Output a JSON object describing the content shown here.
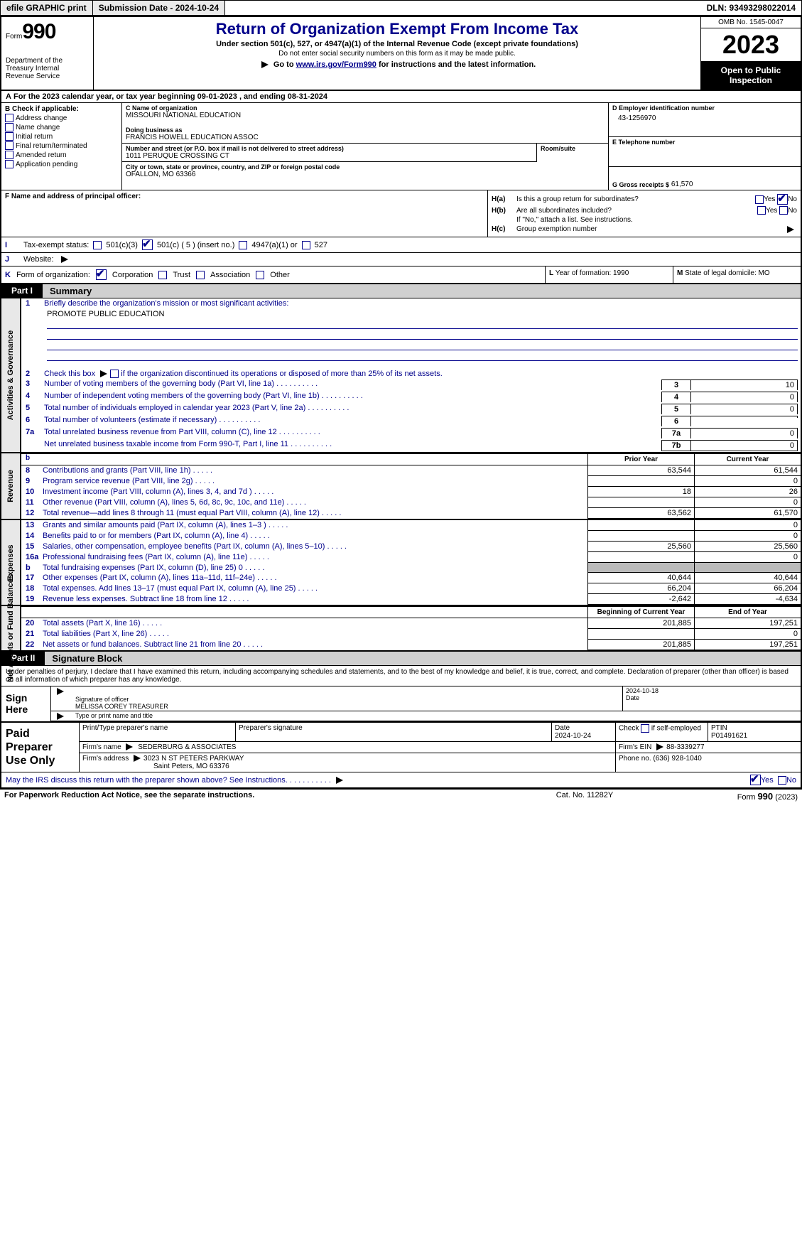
{
  "topbar": {
    "efile": "efile GRAPHIC print",
    "submission": "Submission Date - 2024-10-24",
    "dln": "DLN: 93493298022014"
  },
  "header": {
    "form_label": "Form",
    "form_num": "990",
    "dept": "Department of the Treasury Internal Revenue Service",
    "title": "Return of Organization Exempt From Income Tax",
    "subtitle": "Under section 501(c), 527, or 4947(a)(1) of the Internal Revenue Code (except private foundations)",
    "note": "Do not enter social security numbers on this form as it may be made public.",
    "goto_pre": "Go to ",
    "goto_link": "www.irs.gov/Form990",
    "goto_post": " for instructions and the latest information.",
    "omb": "OMB No. 1545-0047",
    "year": "2023",
    "open": "Open to Public Inspection"
  },
  "period": "For the 2023 calendar year, or tax year beginning 09-01-2023   , and ending 08-31-2024",
  "b": {
    "label": "B Check if applicable:",
    "items": [
      "Address change",
      "Name change",
      "Initial return",
      "Final return/terminated",
      "Amended return",
      "Application pending"
    ]
  },
  "c": {
    "name_lbl": "C Name of organization",
    "name": "MISSOURI NATIONAL EDUCATION",
    "dba_lbl": "Doing business as",
    "dba": "FRANCIS HOWELL EDUCATION ASSOC",
    "street_lbl": "Number and street (or P.O. box if mail is not delivered to street address)",
    "street": "1011 PERUQUE CROSSING CT",
    "room_lbl": "Room/suite",
    "city_lbl": "City or town, state or province, country, and ZIP or foreign postal code",
    "city": "OFALLON, MO  63366"
  },
  "d": {
    "lbl": "D Employer identification number",
    "val": "43-1256970"
  },
  "e": {
    "lbl": "E Telephone number"
  },
  "g": {
    "lbl": "G Gross receipts $",
    "val": "61,570"
  },
  "f": {
    "lbl": "F  Name and address of principal officer:"
  },
  "h": {
    "a_lbl": "H(a)",
    "a_txt": "Is this a group return for subordinates?",
    "b_lbl": "H(b)",
    "b_txt": "Are all subordinates included?",
    "b_note": "If \"No,\" attach a list. See instructions.",
    "c_lbl": "H(c)",
    "c_txt": "Group exemption number",
    "yes": "Yes",
    "no": "No"
  },
  "i": {
    "lbl": "I",
    "txt": "Tax-exempt status:",
    "o1": "501(c)(3)",
    "o2": "501(c) ( 5 ) (insert no.)",
    "o3": "4947(a)(1) or",
    "o4": "527"
  },
  "j": {
    "lbl": "J",
    "txt": "Website:"
  },
  "k": {
    "lbl": "K",
    "txt": "Form of organization:",
    "o1": "Corporation",
    "o2": "Trust",
    "o3": "Association",
    "o4": "Other"
  },
  "l": {
    "lbl": "L",
    "txt": "Year of formation: 1990"
  },
  "m": {
    "lbl": "M",
    "txt": "State of legal domicile: MO"
  },
  "part1": {
    "tag": "Part I",
    "title": "Summary"
  },
  "tabs": {
    "ag": "Activities & Governance",
    "rev": "Revenue",
    "exp": "Expenses",
    "net": "Net Assets or Fund Balances"
  },
  "s1": {
    "num": "1",
    "txt": "Briefly describe the organization's mission or most significant activities:",
    "val": "PROMOTE PUBLIC EDUCATION"
  },
  "s2": {
    "num": "2",
    "txt": "Check this box       if the organization discontinued its operations or disposed of more than 25% of its net assets."
  },
  "lines_ag": [
    {
      "num": "3",
      "txt": "Number of voting members of the governing body (Part VI, line 1a)",
      "box": "3",
      "val": "10"
    },
    {
      "num": "4",
      "txt": "Number of independent voting members of the governing body (Part VI, line 1b)",
      "box": "4",
      "val": "0"
    },
    {
      "num": "5",
      "txt": "Total number of individuals employed in calendar year 2023 (Part V, line 2a)",
      "box": "5",
      "val": "0"
    },
    {
      "num": "6",
      "txt": "Total number of volunteers (estimate if necessary)",
      "box": "6",
      "val": ""
    },
    {
      "num": "7a",
      "txt": "Total unrelated business revenue from Part VIII, column (C), line 12",
      "box": "7a",
      "val": "0"
    },
    {
      "num": "",
      "txt": "Net unrelated business taxable income from Form 990-T, Part I, line 11",
      "box": "7b",
      "val": "0"
    }
  ],
  "b_hdr": "b",
  "col_hdr": {
    "prior": "Prior Year",
    "current": "Current Year"
  },
  "rev": [
    {
      "num": "8",
      "txt": "Contributions and grants (Part VIII, line 1h)",
      "c1": "63,544",
      "c2": "61,544"
    },
    {
      "num": "9",
      "txt": "Program service revenue (Part VIII, line 2g)",
      "c1": "",
      "c2": "0"
    },
    {
      "num": "10",
      "txt": "Investment income (Part VIII, column (A), lines 3, 4, and 7d )",
      "c1": "18",
      "c2": "26"
    },
    {
      "num": "11",
      "txt": "Other revenue (Part VIII, column (A), lines 5, 6d, 8c, 9c, 10c, and 11e)",
      "c1": "",
      "c2": "0"
    },
    {
      "num": "12",
      "txt": "Total revenue—add lines 8 through 11 (must equal Part VIII, column (A), line 12)",
      "c1": "63,562",
      "c2": "61,570"
    }
  ],
  "exp": [
    {
      "num": "13",
      "txt": "Grants and similar amounts paid (Part IX, column (A), lines 1–3 )",
      "c1": "",
      "c2": "0"
    },
    {
      "num": "14",
      "txt": "Benefits paid to or for members (Part IX, column (A), line 4)",
      "c1": "",
      "c2": "0"
    },
    {
      "num": "15",
      "txt": "Salaries, other compensation, employee benefits (Part IX, column (A), lines 5–10)",
      "c1": "25,560",
      "c2": "25,560"
    },
    {
      "num": "16a",
      "txt": "Professional fundraising fees (Part IX, column (A), line 11e)",
      "c1": "",
      "c2": "0"
    },
    {
      "num": "b",
      "txt": "Total fundraising expenses (Part IX, column (D), line 25) 0",
      "c1": "shade",
      "c2": "shade"
    },
    {
      "num": "17",
      "txt": "Other expenses (Part IX, column (A), lines 11a–11d, 11f–24e)",
      "c1": "40,644",
      "c2": "40,644"
    },
    {
      "num": "18",
      "txt": "Total expenses. Add lines 13–17 (must equal Part IX, column (A), line 25)",
      "c1": "66,204",
      "c2": "66,204"
    },
    {
      "num": "19",
      "txt": "Revenue less expenses. Subtract line 18 from line 12",
      "c1": "-2,642",
      "c2": "-4,634"
    }
  ],
  "net_hdr": {
    "begin": "Beginning of Current Year",
    "end": "End of Year"
  },
  "net": [
    {
      "num": "20",
      "txt": "Total assets (Part X, line 16)",
      "c1": "201,885",
      "c2": "197,251"
    },
    {
      "num": "21",
      "txt": "Total liabilities (Part X, line 26)",
      "c1": "",
      "c2": "0"
    },
    {
      "num": "22",
      "txt": "Net assets or fund balances. Subtract line 21 from line 20",
      "c1": "201,885",
      "c2": "197,251"
    }
  ],
  "part2": {
    "tag": "Part II",
    "title": "Signature Block"
  },
  "sig_txt": "Under penalties of perjury, I declare that I have examined this return, including accompanying schedules and statements, and to the best of my knowledge and belief, it is true, correct, and complete. Declaration of preparer (other than officer) is based on all information of which preparer has any knowledge.",
  "sign": {
    "lbl": "Sign Here",
    "sig_lbl": "Signature of officer",
    "name": "MELISSA COREY TREASURER",
    "name_lbl": "Type or print name and title",
    "date_lbl": "Date",
    "date": "2024-10-18"
  },
  "prep": {
    "lbl": "Paid Preparer Use Only",
    "h1": "Print/Type preparer's name",
    "h2": "Preparer's signature",
    "h3": "Date",
    "h4": "Check       if self-employed",
    "h5": "PTIN",
    "date": "2024-10-24",
    "ptin": "P01491621",
    "firm_lbl": "Firm's name",
    "firm": "SEDERBURG & ASSOCIATES",
    "ein_lbl": "Firm's EIN",
    "ein": "88-3339277",
    "addr_lbl": "Firm's address",
    "addr1": "3023 N ST PETERS PARKWAY",
    "addr2": "Saint Peters, MO  63376",
    "phone_lbl": "Phone no.",
    "phone": "(636) 928-1040"
  },
  "discuss": {
    "txt": "May the IRS discuss this return with the preparer shown above? See Instructions.",
    "yes": "Yes",
    "no": "No"
  },
  "footer": {
    "l": "For Paperwork Reduction Act Notice, see the separate instructions.",
    "m": "Cat. No. 11282Y",
    "r_pre": "Form ",
    "r_form": "990",
    "r_post": " (2023)"
  },
  "colors": {
    "navy": "#00008B",
    "shade": "#bbbbbb",
    "tab_bg": "#e8e8e8"
  }
}
